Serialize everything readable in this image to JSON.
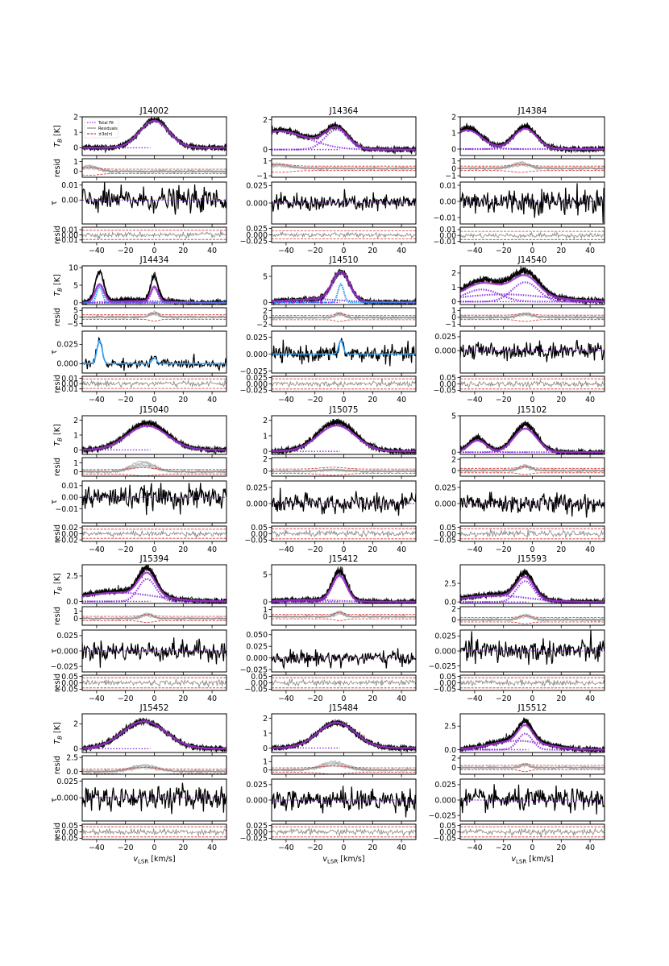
{
  "figure": {
    "xlabel": "v_LSR [km/s]",
    "xlabel_main": "v",
    "xlabel_sub": "LSR",
    "xlabel_unit": " [km/s]",
    "legend": [
      "Total Fit",
      "Residuals",
      "±3σ(τ)"
    ]
  },
  "chart_data": {
    "type": "line",
    "xlim": [
      -50,
      50
    ],
    "xticks": [
      -40,
      -20,
      0,
      20,
      40
    ],
    "panel_ylabels": [
      "T_B [K]",
      "resid",
      "τ",
      "resid"
    ],
    "series_colors": {
      "data": "#000000",
      "fit": "#9b30c8",
      "components": "#8a2be2",
      "cold": "#2aa2ff",
      "residual": "#8a8a8a",
      "sigma": "#d0312d"
    },
    "sources": [
      {
        "name": "J14002",
        "em": {
          "ylim": [
            -0.5,
            2.0
          ],
          "yticks": [
            0,
            1,
            2
          ],
          "peaks": [
            {
              "c": 0,
              "w": 10,
              "a": 1.8
            }
          ],
          "fitscale": 0.97
        },
        "er": {
          "ylim": [
            -0.6,
            1.3
          ],
          "yticks": [
            0,
            1
          ],
          "bump": [
            -45,
            6,
            0.6
          ]
        },
        "tau": {
          "ylim": [
            -0.016,
            0.012
          ],
          "yticks": [
            0.0,
            0.01
          ],
          "noise": 0.004,
          "lines": []
        },
        "tr": {
          "ylim": [
            -0.015,
            0.015
          ],
          "yticks": [
            -0.01,
            0.0,
            0.01
          ],
          "sig": 0.009
        },
        "legend": true
      },
      {
        "name": "J14364",
        "em": {
          "ylim": [
            -0.4,
            2.2
          ],
          "yticks": [
            0,
            2
          ],
          "peaks": [
            {
              "c": -5,
              "w": 8,
              "a": 1.4
            },
            {
              "c": -45,
              "w": 20,
              "a": 1.3
            }
          ],
          "fitscale": 0.95
        },
        "er": {
          "ylim": [
            -1.2,
            1.3
          ],
          "yticks": [
            -1,
            1
          ],
          "bump": [
            -45,
            8,
            0.6
          ]
        },
        "tau": {
          "ylim": [
            -0.03,
            0.03
          ],
          "yticks": [
            0.0,
            0.025
          ],
          "noise": 0.006,
          "lines": []
        },
        "tr": {
          "ylim": [
            -0.03,
            0.03
          ],
          "yticks": [
            -0.025,
            0.0,
            0.025
          ],
          "sig": 0.016
        }
      },
      {
        "name": "J14384",
        "em": {
          "ylim": [
            -0.4,
            2.0
          ],
          "yticks": [
            0,
            1,
            2
          ],
          "peaks": [
            {
              "c": -5,
              "w": 8,
              "a": 1.4
            },
            {
              "c": -45,
              "w": 10,
              "a": 1.3
            }
          ],
          "fitscale": 0.9
        },
        "er": {
          "ylim": [
            -1.2,
            1.3
          ],
          "yticks": [
            -1,
            0,
            1
          ],
          "bump": [
            -8,
            6,
            0.8
          ]
        },
        "tau": {
          "ylim": [
            -0.014,
            0.012
          ],
          "yticks": [
            -0.01,
            0.0,
            0.01
          ],
          "noise": 0.004,
          "lines": []
        },
        "tr": {
          "ylim": [
            -0.012,
            0.014
          ],
          "yticks": [
            -0.01,
            0.0,
            0.01
          ],
          "sig": 0.007
        }
      },
      {
        "name": "J14434",
        "em": {
          "ylim": [
            -0.5,
            10.5
          ],
          "yticks": [
            0,
            5,
            10
          ],
          "peaks": [
            {
              "c": -38,
              "w": 3,
              "a": 8.5
            },
            {
              "c": 0,
              "w": 2.5,
              "a": 7.0
            },
            {
              "c": -10,
              "w": 20,
              "a": 0.8
            }
          ],
          "fitscale": 0.6,
          "cold": [
            [
              -38,
              2,
              4.5
            ]
          ]
        },
        "er": {
          "ylim": [
            -7,
            7
          ],
          "yticks": [
            -5,
            0,
            5
          ],
          "bump": [
            0,
            3,
            3.5
          ]
        },
        "tau": {
          "ylim": [
            -0.012,
            0.042
          ],
          "yticks": [
            0.0,
            0.025
          ],
          "noise": 0.003,
          "lines": [
            [
              -38,
              1.8,
              0.03
            ],
            [
              0,
              1.5,
              0.008
            ]
          ]
        },
        "tr": {
          "ylim": [
            -0.015,
            0.014
          ],
          "yticks": [
            -0.01,
            0.0,
            0.01
          ],
          "sig": 0.009
        }
      },
      {
        "name": "J14510",
        "em": {
          "ylim": [
            -0.4,
            7.0
          ],
          "yticks": [
            0,
            5
          ],
          "peaks": [
            {
              "c": -2,
              "w": 6,
              "a": 5.5
            },
            {
              "c": -20,
              "w": 20,
              "a": 0.6
            }
          ],
          "fitscale": 1.0,
          "cold": [
            [
              -2,
              2,
              3.5
            ]
          ]
        },
        "er": {
          "ylim": [
            -2.5,
            2.8
          ],
          "yticks": [
            -2,
            0,
            2
          ],
          "bump": [
            -3,
            3,
            1.5
          ]
        },
        "tau": {
          "ylim": [
            -0.028,
            0.034
          ],
          "yticks": [
            -0.025,
            0.0,
            0.025
          ],
          "noise": 0.006,
          "lines": [
            [
              -2,
              1.5,
              0.02
            ]
          ]
        },
        "tr": {
          "ylim": [
            -0.03,
            0.03
          ],
          "yticks": [
            -0.025,
            0.0,
            0.025
          ],
          "sig": 0.02
        }
      },
      {
        "name": "J14540",
        "em": {
          "ylim": [
            -0.2,
            2.5
          ],
          "yticks": [
            0,
            1,
            2
          ],
          "peaks": [
            {
              "c": -5,
              "w": 9,
              "a": 1.6
            },
            {
              "c": -35,
              "w": 12,
              "a": 1.0
            },
            {
              "c": -20,
              "w": 30,
              "a": 0.6
            }
          ],
          "fitscale": 0.85
        },
        "er": {
          "ylim": [
            -1.3,
            1.4
          ],
          "yticks": [
            -1,
            0,
            1
          ],
          "bump": [
            -5,
            5,
            0.6
          ]
        },
        "tau": {
          "ylim": [
            -0.04,
            0.035
          ],
          "yticks": [
            0.0,
            0.025
          ],
          "noise": 0.008,
          "lines": []
        },
        "tr": {
          "ylim": [
            -0.06,
            0.06
          ],
          "yticks": [
            -0.05,
            0.0,
            0.05
          ],
          "sig": 0.04
        }
      },
      {
        "name": "J15040",
        "em": {
          "ylim": [
            -0.3,
            2.3
          ],
          "yticks": [
            0,
            1,
            2
          ],
          "peaks": [
            {
              "c": -5,
              "w": 14,
              "a": 1.8
            }
          ],
          "fitscale": 0.9
        },
        "er": {
          "ylim": [
            -0.5,
            1.6
          ],
          "yticks": [
            0,
            1
          ],
          "bump": [
            -8,
            8,
            1.2
          ]
        },
        "tau": {
          "ylim": [
            -0.022,
            0.014
          ],
          "yticks": [
            -0.01,
            0.0,
            0.01
          ],
          "noise": 0.005,
          "lines": []
        },
        "tr": {
          "ylim": [
            -0.025,
            0.025
          ],
          "yticks": [
            -0.02,
            0.0,
            0.02
          ],
          "sig": 0.015
        }
      },
      {
        "name": "J15075",
        "em": {
          "ylim": [
            -0.2,
            2.3
          ],
          "yticks": [
            0,
            1,
            2
          ],
          "peaks": [
            {
              "c": -5,
              "w": 13,
              "a": 1.9
            }
          ],
          "fitscale": 0.88
        },
        "er": {
          "ylim": [
            -0.8,
            2.2
          ],
          "yticks": [
            0,
            2
          ],
          "bump": [
            -8,
            8,
            0.3
          ]
        },
        "tau": {
          "ylim": [
            -0.03,
            0.035
          ],
          "yticks": [
            0.0,
            0.025
          ],
          "noise": 0.008,
          "lines": []
        },
        "tr": {
          "ylim": [
            -0.06,
            0.06
          ],
          "yticks": [
            -0.05,
            0.0,
            0.05
          ],
          "sig": 0.04
        }
      },
      {
        "name": "J15102",
        "em": {
          "ylim": [
            -0.3,
            5.0
          ],
          "yticks": [
            0,
            5
          ],
          "peaks": [
            {
              "c": -5,
              "w": 8,
              "a": 3.8
            },
            {
              "c": -38,
              "w": 6,
              "a": 1.9
            }
          ],
          "fitscale": 0.85
        },
        "er": {
          "ylim": [
            -1.0,
            2.3
          ],
          "yticks": [
            0,
            2
          ],
          "bump": [
            -5,
            4,
            1.0
          ]
        },
        "tau": {
          "ylim": [
            -0.03,
            0.035
          ],
          "yticks": [
            0.0,
            0.025
          ],
          "noise": 0.008,
          "lines": []
        },
        "tr": {
          "ylim": [
            -0.06,
            0.06
          ],
          "yticks": [
            -0.05,
            0.0,
            0.05
          ],
          "sig": 0.04
        }
      },
      {
        "name": "J15394",
        "em": {
          "ylim": [
            -0.2,
            3.6
          ],
          "yticks": [
            0.0,
            2.5
          ],
          "peaks": [
            {
              "c": -5,
              "w": 6,
              "a": 2.6
            },
            {
              "c": -25,
              "w": 25,
              "a": 1.0
            }
          ],
          "fitscale": 0.85
        },
        "er": {
          "ylim": [
            -0.9,
            1.6
          ],
          "yticks": [
            0,
            1
          ],
          "bump": [
            -5,
            4,
            0.7
          ]
        },
        "tau": {
          "ylim": [
            -0.034,
            0.034
          ],
          "yticks": [
            -0.025,
            0.0,
            0.025
          ],
          "noise": 0.008,
          "lines": []
        },
        "tr": {
          "ylim": [
            -0.06,
            0.06
          ],
          "yticks": [
            -0.05,
            0.0,
            0.05
          ],
          "sig": 0.04
        }
      },
      {
        "name": "J15412",
        "em": {
          "ylim": [
            -0.3,
            6.8
          ],
          "yticks": [
            0,
            5
          ],
          "peaks": [
            {
              "c": -3,
              "w": 5,
              "a": 5.5
            },
            {
              "c": -25,
              "w": 20,
              "a": 0.4
            }
          ],
          "fitscale": 0.85
        },
        "er": {
          "ylim": [
            -1.2,
            1.4
          ],
          "yticks": [
            0,
            1
          ],
          "bump": [
            -3,
            3,
            0.8
          ]
        },
        "tau": {
          "ylim": [
            -0.03,
            0.06
          ],
          "yticks": [
            -0.025,
            0.0,
            0.025,
            0.05
          ],
          "noise": 0.008,
          "lines": []
        },
        "tr": {
          "ylim": [
            -0.06,
            0.06
          ],
          "yticks": [
            -0.05,
            0.0,
            0.05
          ],
          "sig": 0.04
        }
      },
      {
        "name": "J15593",
        "em": {
          "ylim": [
            -0.2,
            5.0
          ],
          "yticks": [
            0.0,
            2.5
          ],
          "peaks": [
            {
              "c": -5,
              "w": 6,
              "a": 3.3
            },
            {
              "c": -25,
              "w": 22,
              "a": 1.0
            }
          ],
          "fitscale": 0.85
        },
        "er": {
          "ylim": [
            -1.0,
            2.4
          ],
          "yticks": [
            0,
            2
          ],
          "bump": [
            -5,
            4,
            1.0
          ]
        },
        "tau": {
          "ylim": [
            -0.035,
            0.035
          ],
          "yticks": [
            -0.025,
            0.0,
            0.025
          ],
          "noise": 0.01,
          "lines": []
        },
        "tr": {
          "ylim": [
            -0.06,
            0.06
          ],
          "yticks": [
            -0.05,
            0.0,
            0.05
          ],
          "sig": 0.04
        }
      },
      {
        "name": "J15452",
        "em": {
          "ylim": [
            -0.3,
            2.8
          ],
          "yticks": [
            0,
            2
          ],
          "peaks": [
            {
              "c": -7,
              "w": 15,
              "a": 2.2
            }
          ],
          "fitscale": 1.0
        },
        "er": {
          "ylim": [
            -0.5,
            2.8
          ],
          "yticks": [
            0.0,
            2.5
          ],
          "bump": [
            -7,
            9,
            1.2
          ]
        },
        "tau": {
          "ylim": [
            -0.035,
            0.028
          ],
          "yticks": [
            0.0,
            0.025
          ],
          "noise": 0.009,
          "lines": []
        },
        "tr": {
          "ylim": [
            -0.06,
            0.06
          ],
          "yticks": [
            -0.05,
            0.0,
            0.05
          ],
          "sig": 0.04
        }
      },
      {
        "name": "J15484",
        "em": {
          "ylim": [
            -0.3,
            2.3
          ],
          "yticks": [
            0,
            1,
            2
          ],
          "peaks": [
            {
              "c": -5,
              "w": 13,
              "a": 1.7
            }
          ],
          "fitscale": 1.0
        },
        "er": {
          "ylim": [
            -0.5,
            1.7
          ],
          "yticks": [
            0,
            1
          ],
          "bump": [
            -7,
            9,
            1.0
          ]
        },
        "tau": {
          "ylim": [
            -0.034,
            0.034
          ],
          "yticks": [
            0.0,
            0.025
          ],
          "noise": 0.009,
          "lines": []
        },
        "tr": {
          "ylim": [
            -0.03,
            0.03
          ],
          "yticks": [
            -0.025,
            0.0,
            0.025
          ],
          "sig": 0.02
        }
      },
      {
        "name": "J15512",
        "em": {
          "ylim": [
            -0.3,
            3.8
          ],
          "yticks": [
            0.0,
            2.5
          ],
          "peaks": [
            {
              "c": -5,
              "w": 5,
              "a": 2.0
            },
            {
              "c": -10,
              "w": 18,
              "a": 1.1
            }
          ],
          "fitscale": 0.85
        },
        "er": {
          "ylim": [
            -1.4,
            2.5
          ],
          "yticks": [
            0,
            2
          ],
          "bump": [
            -5,
            3,
            0.8
          ]
        },
        "tau": {
          "ylim": [
            -0.034,
            0.034
          ],
          "yticks": [
            -0.025,
            0.0,
            0.025
          ],
          "noise": 0.009,
          "lines": []
        },
        "tr": {
          "ylim": [
            -0.06,
            0.06
          ],
          "yticks": [
            -0.05,
            0.0,
            0.05
          ],
          "sig": 0.04
        }
      }
    ]
  }
}
